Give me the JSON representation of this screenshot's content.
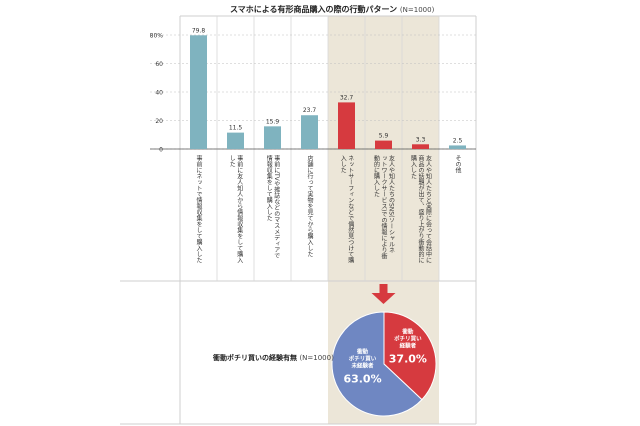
{
  "header": {
    "title": "スマホによる有形商品購入の際の行動パターン",
    "sample": "(N=1000)"
  },
  "chart_data": [
    {
      "type": "bar",
      "categories": [
        "事前にネットで情報収集をして購入した",
        "事前に友人知人から情報収集をして購入した",
        "事前にTVや雑誌などのマスメディアで情報収集をして購入した",
        "店舗に行って実物を見てから購入した",
        "ネットサーフィンなどで偶然見つけて購入した",
        "友人や知人たちのSNS(ソーシャルネットワークサービス)での情報により衝動的に購入した",
        "友人や知人たちと実際に会って会話中に商品の話題が出て、盛り上がり衝動的に購入した",
        "その他"
      ],
      "values": [
        79.8,
        11.5,
        15.9,
        23.7,
        32.7,
        5.9,
        3.3,
        2.5
      ],
      "value_labels": [
        "79.8",
        "11.5",
        "15.9",
        "23.7",
        "32.7",
        "5.9",
        "3.3",
        "2.5"
      ],
      "yticks": [
        "80%",
        "60",
        "40",
        "20",
        "0"
      ],
      "ylim": [
        0,
        80
      ],
      "highlighted": [
        4,
        5,
        6
      ],
      "colors": {
        "normal": "#7fb3bf",
        "highlight": "#d63a3f",
        "panel": "#ece6d8",
        "arrow": "#d63a3f"
      }
    },
    {
      "type": "pie",
      "title": "衝動ポチリ買いの経験有無",
      "sample": "(N=1000)",
      "slices": [
        {
          "label_lines": [
            "衝動",
            "ポチリ買い",
            "経験者"
          ],
          "value": 37.0,
          "value_label": "37.0%",
          "color": "#d63a3f"
        },
        {
          "label_lines": [
            "衝動",
            "ポチリ買い",
            "未経験者"
          ],
          "value": 63.0,
          "value_label": "63.0%",
          "color": "#6f87c2"
        }
      ]
    }
  ]
}
